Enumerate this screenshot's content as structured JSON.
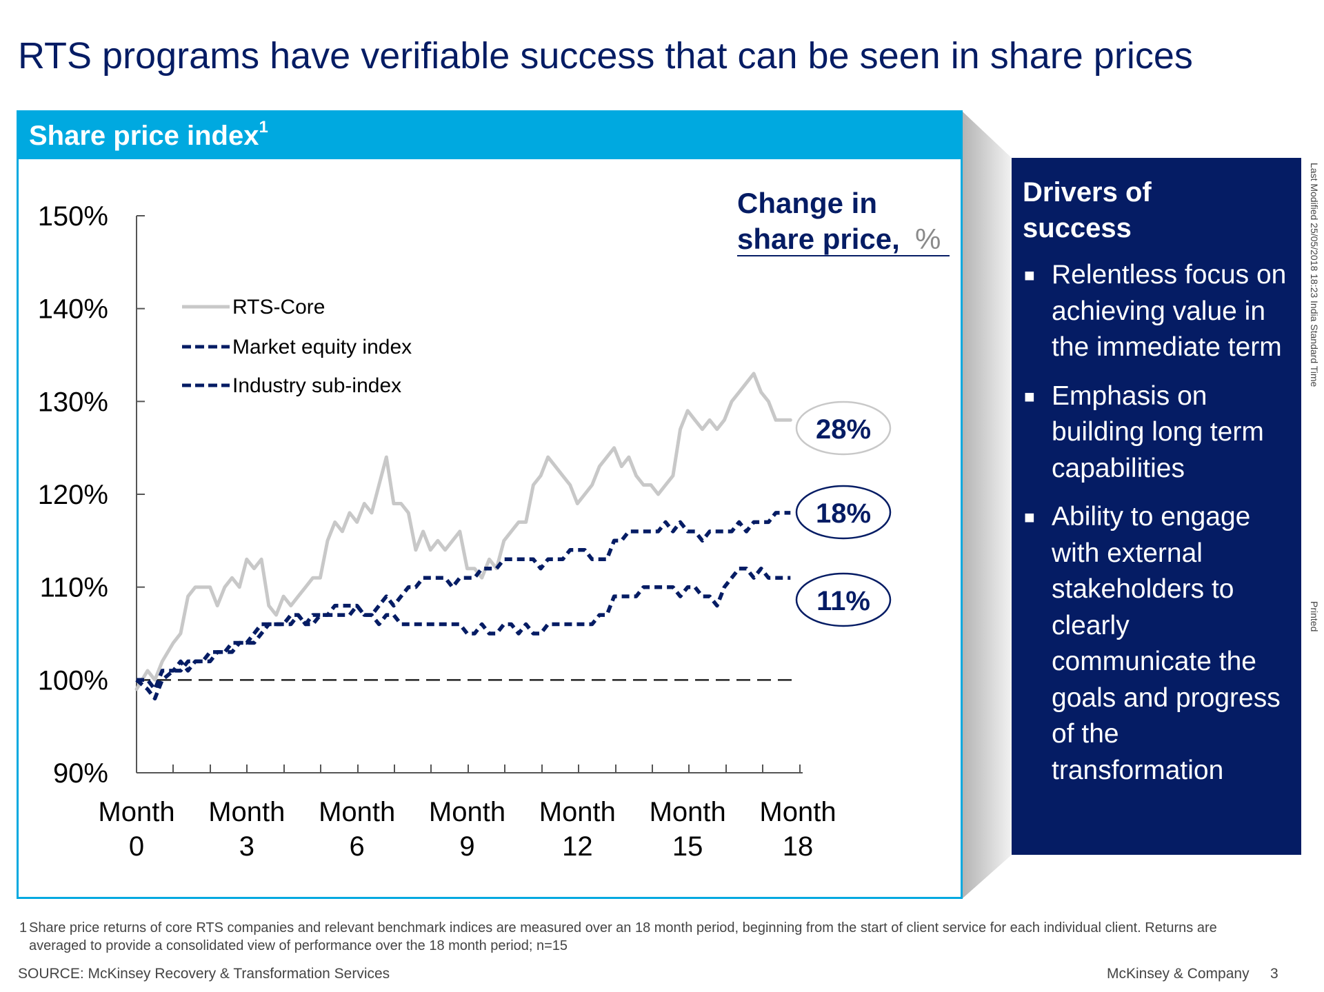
{
  "title": "RTS programs have verifiable success that can be seen in share prices",
  "panel": {
    "title": "Share price index",
    "footnote_marker": "1"
  },
  "change_box": {
    "line1": "Change in",
    "line2": "share price,",
    "unit": "%"
  },
  "drivers": {
    "title": "Drivers of\nsuccess",
    "items": [
      "Relentless focus on achieving value in the immediate term",
      "Emphasis on building long term capabilities",
      "Ability to engage with external stakeholders to clearly communicate the goals and progress of the transformation"
    ]
  },
  "side_notes": {
    "modified": "Last Modified 25/05/2018 18:23 India Standard Time",
    "printed": "Printed"
  },
  "footnote": {
    "number": "1",
    "text": "Share price returns of core RTS companies and relevant benchmark indices are measured over an 18 month period, beginning from the start of client service for each individual client. Returns are averaged to provide a consolidated view of performance over the 18 month period; n=15"
  },
  "source": "SOURCE: McKinsey Recovery & Transformation Services",
  "company": "McKinsey & Company",
  "page_number": "3",
  "colors": {
    "accent": "#00a9e0",
    "navy": "#051c64",
    "rts_core": "#c8c8c8"
  },
  "chart_data": {
    "type": "line",
    "title": "Share price index",
    "xlabel": "",
    "ylabel": "",
    "xlim": [
      0,
      18
    ],
    "ylim": [
      90,
      150
    ],
    "x_ticks": [
      0,
      3,
      6,
      9,
      12,
      15,
      18
    ],
    "x_tick_labels": [
      [
        "Month",
        "0"
      ],
      [
        "Month",
        "3"
      ],
      [
        "Month",
        "6"
      ],
      [
        "Month",
        "9"
      ],
      [
        "Month",
        "12"
      ],
      [
        "Month",
        "15"
      ],
      [
        "Month",
        "18"
      ]
    ],
    "y_ticks": [
      90,
      100,
      110,
      120,
      130,
      140,
      150
    ],
    "y_tick_labels": [
      "90%",
      "100%",
      "110%",
      "120%",
      "130%",
      "140%",
      "150%"
    ],
    "legend_position": "top-left",
    "grid": false,
    "baseline": 100,
    "series": [
      {
        "name": "RTS-Core",
        "style": "solid",
        "color": "#c8c8c8",
        "end_label": "28%",
        "points": [
          [
            0,
            99
          ],
          [
            0.3,
            101
          ],
          [
            0.5,
            100
          ],
          [
            0.7,
            102
          ],
          [
            1,
            104
          ],
          [
            1.2,
            105
          ],
          [
            1.4,
            109
          ],
          [
            1.6,
            110
          ],
          [
            1.8,
            110
          ],
          [
            2,
            110
          ],
          [
            2.2,
            108
          ],
          [
            2.4,
            110
          ],
          [
            2.6,
            111
          ],
          [
            2.8,
            110
          ],
          [
            3,
            113
          ],
          [
            3.2,
            112
          ],
          [
            3.4,
            113
          ],
          [
            3.6,
            108
          ],
          [
            3.8,
            107
          ],
          [
            4,
            109
          ],
          [
            4.2,
            108
          ],
          [
            4.4,
            109
          ],
          [
            4.6,
            110
          ],
          [
            4.8,
            111
          ],
          [
            5,
            111
          ],
          [
            5.2,
            115
          ],
          [
            5.4,
            117
          ],
          [
            5.6,
            116
          ],
          [
            5.8,
            118
          ],
          [
            6,
            117
          ],
          [
            6.2,
            119
          ],
          [
            6.4,
            118
          ],
          [
            6.6,
            121
          ],
          [
            6.8,
            124
          ],
          [
            7,
            119
          ],
          [
            7.2,
            119
          ],
          [
            7.4,
            118
          ],
          [
            7.6,
            114
          ],
          [
            7.8,
            116
          ],
          [
            8,
            114
          ],
          [
            8.2,
            115
          ],
          [
            8.4,
            114
          ],
          [
            8.6,
            115
          ],
          [
            8.8,
            116
          ],
          [
            9,
            112
          ],
          [
            9.2,
            112
          ],
          [
            9.4,
            111
          ],
          [
            9.6,
            113
          ],
          [
            9.8,
            112
          ],
          [
            10,
            115
          ],
          [
            10.2,
            116
          ],
          [
            10.4,
            117
          ],
          [
            10.6,
            117
          ],
          [
            10.8,
            121
          ],
          [
            11,
            122
          ],
          [
            11.2,
            124
          ],
          [
            11.4,
            123
          ],
          [
            11.6,
            122
          ],
          [
            11.8,
            121
          ],
          [
            12,
            119
          ],
          [
            12.2,
            120
          ],
          [
            12.4,
            121
          ],
          [
            12.6,
            123
          ],
          [
            12.8,
            124
          ],
          [
            13,
            125
          ],
          [
            13.2,
            123
          ],
          [
            13.4,
            124
          ],
          [
            13.6,
            122
          ],
          [
            13.8,
            121
          ],
          [
            14,
            121
          ],
          [
            14.2,
            120
          ],
          [
            14.4,
            121
          ],
          [
            14.6,
            122
          ],
          [
            14.8,
            127
          ],
          [
            15,
            129
          ],
          [
            15.2,
            128
          ],
          [
            15.4,
            127
          ],
          [
            15.6,
            128
          ],
          [
            15.8,
            127
          ],
          [
            16,
            128
          ],
          [
            16.2,
            130
          ],
          [
            16.4,
            131
          ],
          [
            16.6,
            132
          ],
          [
            16.8,
            133
          ],
          [
            17,
            131
          ],
          [
            17.2,
            130
          ],
          [
            17.4,
            128
          ],
          [
            17.6,
            128
          ],
          [
            17.8,
            128
          ]
        ]
      },
      {
        "name": "Market equity index",
        "style": "dashed",
        "color": "#051c64",
        "end_label": "18%",
        "points": [
          [
            0,
            100
          ],
          [
            0.3,
            100
          ],
          [
            0.5,
            99
          ],
          [
            0.7,
            101
          ],
          [
            1,
            101
          ],
          [
            1.2,
            102
          ],
          [
            1.4,
            101
          ],
          [
            1.6,
            102
          ],
          [
            1.8,
            102
          ],
          [
            2,
            103
          ],
          [
            2.2,
            103
          ],
          [
            2.4,
            103
          ],
          [
            2.6,
            104
          ],
          [
            2.8,
            104
          ],
          [
            3,
            104
          ],
          [
            3.2,
            105
          ],
          [
            3.4,
            106
          ],
          [
            3.6,
            106
          ],
          [
            3.8,
            106
          ],
          [
            4,
            106
          ],
          [
            4.2,
            107
          ],
          [
            4.4,
            107
          ],
          [
            4.6,
            106
          ],
          [
            4.8,
            106
          ],
          [
            5,
            107
          ],
          [
            5.2,
            107
          ],
          [
            5.4,
            108
          ],
          [
            5.6,
            108
          ],
          [
            5.8,
            108
          ],
          [
            6,
            108
          ],
          [
            6.2,
            107
          ],
          [
            6.4,
            107
          ],
          [
            6.6,
            108
          ],
          [
            6.8,
            109
          ],
          [
            7,
            108
          ],
          [
            7.2,
            109
          ],
          [
            7.4,
            110
          ],
          [
            7.6,
            110
          ],
          [
            7.8,
            111
          ],
          [
            8,
            111
          ],
          [
            8.2,
            111
          ],
          [
            8.4,
            111
          ],
          [
            8.6,
            110
          ],
          [
            8.8,
            111
          ],
          [
            9,
            111
          ],
          [
            9.2,
            111
          ],
          [
            9.4,
            112
          ],
          [
            9.6,
            112
          ],
          [
            9.8,
            112
          ],
          [
            10,
            113
          ],
          [
            10.2,
            113
          ],
          [
            10.4,
            113
          ],
          [
            10.6,
            113
          ],
          [
            10.8,
            113
          ],
          [
            11,
            112
          ],
          [
            11.2,
            113
          ],
          [
            11.4,
            113
          ],
          [
            11.6,
            113
          ],
          [
            11.8,
            114
          ],
          [
            12,
            114
          ],
          [
            12.2,
            114
          ],
          [
            12.4,
            113
          ],
          [
            12.6,
            113
          ],
          [
            12.8,
            113
          ],
          [
            13,
            115
          ],
          [
            13.2,
            115
          ],
          [
            13.4,
            116
          ],
          [
            13.6,
            116
          ],
          [
            13.8,
            116
          ],
          [
            14,
            116
          ],
          [
            14.2,
            116
          ],
          [
            14.4,
            117
          ],
          [
            14.6,
            116
          ],
          [
            14.8,
            117
          ],
          [
            15,
            116
          ],
          [
            15.2,
            116
          ],
          [
            15.4,
            115
          ],
          [
            15.6,
            116
          ],
          [
            15.8,
            116
          ],
          [
            16,
            116
          ],
          [
            16.2,
            116
          ],
          [
            16.4,
            117
          ],
          [
            16.6,
            116
          ],
          [
            16.8,
            117
          ],
          [
            17,
            117
          ],
          [
            17.2,
            117
          ],
          [
            17.4,
            118
          ],
          [
            17.6,
            118
          ],
          [
            17.8,
            118
          ]
        ]
      },
      {
        "name": "Industry sub-index",
        "style": "dashed",
        "color": "#051c64",
        "end_label": "11%",
        "points": [
          [
            0,
            100
          ],
          [
            0.3,
            99
          ],
          [
            0.5,
            98
          ],
          [
            0.7,
            100
          ],
          [
            1,
            101
          ],
          [
            1.2,
            101
          ],
          [
            1.4,
            102
          ],
          [
            1.6,
            102
          ],
          [
            1.8,
            102
          ],
          [
            2,
            102
          ],
          [
            2.2,
            103
          ],
          [
            2.4,
            103
          ],
          [
            2.6,
            103
          ],
          [
            2.8,
            104
          ],
          [
            3,
            104
          ],
          [
            3.2,
            104
          ],
          [
            3.4,
            105
          ],
          [
            3.6,
            106
          ],
          [
            3.8,
            106
          ],
          [
            4,
            106
          ],
          [
            4.2,
            106
          ],
          [
            4.4,
            107
          ],
          [
            4.6,
            106
          ],
          [
            4.8,
            107
          ],
          [
            5,
            107
          ],
          [
            5.2,
            107
          ],
          [
            5.4,
            107
          ],
          [
            5.6,
            107
          ],
          [
            5.8,
            107
          ],
          [
            6,
            108
          ],
          [
            6.2,
            107
          ],
          [
            6.4,
            107
          ],
          [
            6.6,
            106
          ],
          [
            6.8,
            107
          ],
          [
            7,
            107
          ],
          [
            7.2,
            106
          ],
          [
            7.4,
            106
          ],
          [
            7.6,
            106
          ],
          [
            7.8,
            106
          ],
          [
            8,
            106
          ],
          [
            8.2,
            106
          ],
          [
            8.4,
            106
          ],
          [
            8.6,
            106
          ],
          [
            8.8,
            106
          ],
          [
            9,
            105
          ],
          [
            9.2,
            105
          ],
          [
            9.4,
            106
          ],
          [
            9.6,
            105
          ],
          [
            9.8,
            105
          ],
          [
            10,
            106
          ],
          [
            10.2,
            106
          ],
          [
            10.4,
            105
          ],
          [
            10.6,
            106
          ],
          [
            10.8,
            105
          ],
          [
            11,
            105
          ],
          [
            11.2,
            106
          ],
          [
            11.4,
            106
          ],
          [
            11.6,
            106
          ],
          [
            11.8,
            106
          ],
          [
            12,
            106
          ],
          [
            12.2,
            106
          ],
          [
            12.4,
            106
          ],
          [
            12.6,
            107
          ],
          [
            12.8,
            107
          ],
          [
            13,
            109
          ],
          [
            13.2,
            109
          ],
          [
            13.4,
            109
          ],
          [
            13.6,
            109
          ],
          [
            13.8,
            110
          ],
          [
            14,
            110
          ],
          [
            14.2,
            110
          ],
          [
            14.4,
            110
          ],
          [
            14.6,
            110
          ],
          [
            14.8,
            109
          ],
          [
            15,
            110
          ],
          [
            15.2,
            110
          ],
          [
            15.4,
            109
          ],
          [
            15.6,
            109
          ],
          [
            15.8,
            108
          ],
          [
            16,
            110
          ],
          [
            16.2,
            111
          ],
          [
            16.4,
            112
          ],
          [
            16.6,
            112
          ],
          [
            16.8,
            111
          ],
          [
            17,
            112
          ],
          [
            17.2,
            111
          ],
          [
            17.4,
            111
          ],
          [
            17.6,
            111
          ],
          [
            17.8,
            111
          ]
        ]
      }
    ]
  }
}
